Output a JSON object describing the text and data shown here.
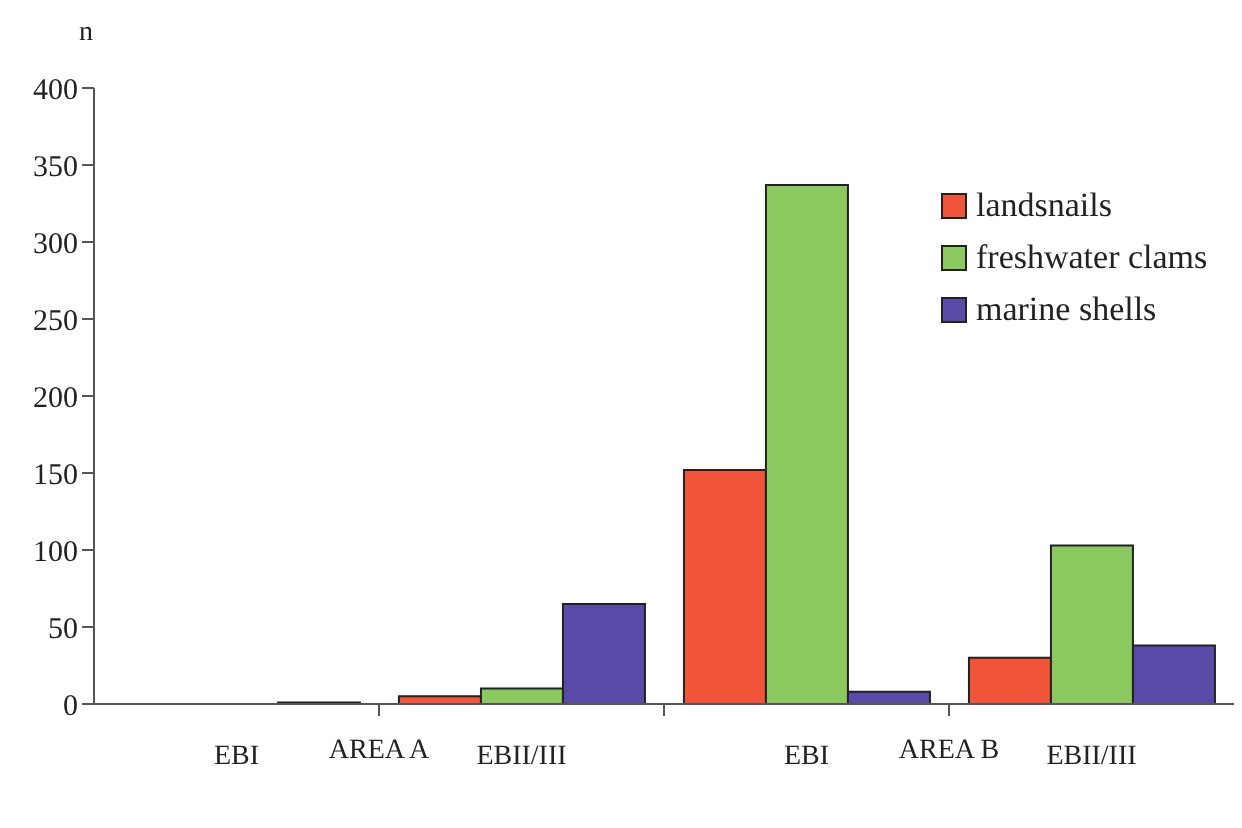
{
  "chart_data": {
    "type": "bar",
    "ylabel": "n",
    "categories": [
      "EBI",
      "EBII/III",
      "EBI",
      "EBII/III"
    ],
    "series": [
      {
        "name": "landsnails",
        "color": "#f0553a",
        "values": [
          0,
          5,
          152,
          30
        ]
      },
      {
        "name": "freshwater clams",
        "color": "#8cc860",
        "values": [
          0,
          10,
          337,
          103
        ]
      },
      {
        "name": "marine shells",
        "color": "#5a4aa8",
        "values": [
          1,
          65,
          8,
          38
        ]
      }
    ],
    "annotations": [
      "AREA A",
      "AREA B"
    ],
    "ylim": [
      0,
      400
    ],
    "yticks": [
      0,
      50,
      100,
      150,
      200,
      250,
      300,
      350,
      400
    ],
    "grid": false,
    "legend": "top right"
  }
}
